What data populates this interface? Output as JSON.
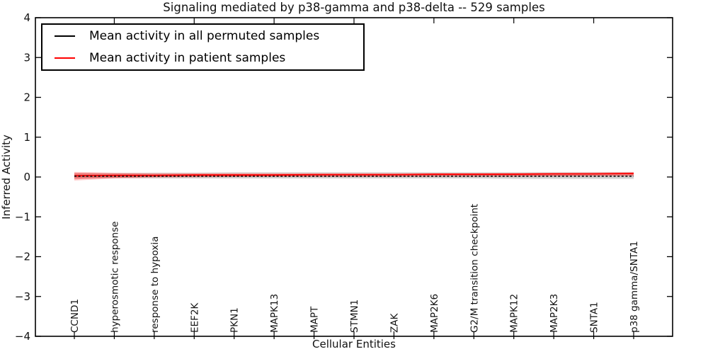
{
  "figure": {
    "background": "#ffffff",
    "frame_color": "#000000"
  },
  "legend": {
    "position": "upper-left",
    "entries": [
      {
        "label": "Mean activity in all permuted samples",
        "color": "#000000"
      },
      {
        "label": "Mean activity in patient samples",
        "color": "#ff0000"
      }
    ]
  },
  "chart_data": {
    "type": "line",
    "title": "Signaling mediated by p38-gamma and p38-delta -- 529 samples",
    "xlabel": "Cellular Entities",
    "ylabel": "Inferred Activity",
    "ylim": [
      -4,
      4
    ],
    "grid": false,
    "legend_position": "upper-left",
    "ytick_values": [
      4,
      3,
      2,
      1,
      0,
      -1,
      -2,
      -3,
      -4
    ],
    "ytick_labels": [
      "4",
      "3",
      "2",
      "1",
      "0",
      "−1",
      "−2",
      "−3",
      "−4"
    ],
    "categories": [
      "CCND1",
      "hyperosmotic response",
      "response to hypoxia",
      "EEF2K",
      "PKN1",
      "MAPK13",
      "MAPT",
      "STMN1",
      "ZAK",
      "MAP2K6",
      "G2/M transition checkpoint",
      "MAPK12",
      "MAP2K3",
      "SNTA1",
      "p38 gamma/SNTA1"
    ],
    "series": [
      {
        "name": "Mean activity in all permuted samples",
        "color": "#000000",
        "style": "dashed",
        "values": [
          0.02,
          0.02,
          0.02,
          0.02,
          0.02,
          0.02,
          0.02,
          0.02,
          0.02,
          0.02,
          0.02,
          0.02,
          0.02,
          0.02,
          0.02
        ]
      },
      {
        "name": "Mean activity in patient samples",
        "color": "#ff0000",
        "style": "solid",
        "values": [
          0.03,
          0.04,
          0.04,
          0.05,
          0.05,
          0.05,
          0.06,
          0.06,
          0.06,
          0.07,
          0.07,
          0.07,
          0.08,
          0.08,
          0.09
        ]
      }
    ],
    "bands": [
      {
        "name": "permuted-envelope-outer",
        "color": "#dcdcdc",
        "upper": [
          0.09,
          0.1,
          0.11,
          0.11,
          0.12,
          0.12,
          0.12,
          0.12,
          0.12,
          0.12,
          0.12,
          0.12,
          0.12,
          0.12,
          0.12
        ],
        "lower": [
          -0.03,
          -0.03,
          -0.04,
          -0.04,
          -0.04,
          -0.04,
          -0.04,
          -0.04,
          -0.04,
          -0.04,
          -0.04,
          -0.05,
          -0.05,
          -0.05,
          -0.05
        ]
      },
      {
        "name": "permuted-envelope-inner",
        "color": "#cccccc",
        "upper": [
          0.06,
          0.06,
          0.06,
          0.06,
          0.06,
          0.06,
          0.06,
          0.06,
          0.06,
          0.06,
          0.06,
          0.06,
          0.06,
          0.06,
          0.06
        ],
        "lower": [
          -0.02,
          -0.02,
          -0.02,
          -0.02,
          -0.02,
          -0.02,
          -0.02,
          -0.02,
          -0.02,
          -0.02,
          -0.02,
          -0.02,
          -0.02,
          -0.02,
          -0.02
        ]
      },
      {
        "name": "patient-envelope-outer",
        "color": "rgba(255,0,0,0.18)",
        "upper": [
          0.13,
          0.11,
          0.1,
          0.1,
          0.1,
          0.1,
          0.1,
          0.1,
          0.1,
          0.1,
          0.1,
          0.11,
          0.11,
          0.12,
          0.13
        ],
        "lower": [
          -0.09,
          -0.04,
          -0.02,
          -0.01,
          0.0,
          0.0,
          0.0,
          0.0,
          0.0,
          0.01,
          0.01,
          0.01,
          0.02,
          0.02,
          0.02
        ]
      },
      {
        "name": "patient-envelope-inner",
        "color": "rgba(255,0,0,0.30)",
        "upper": [
          0.11,
          0.09,
          0.08,
          0.08,
          0.08,
          0.08,
          0.08,
          0.08,
          0.08,
          0.08,
          0.08,
          0.09,
          0.09,
          0.09,
          0.1
        ],
        "lower": [
          -0.06,
          -0.02,
          0.0,
          0.01,
          0.01,
          0.02,
          0.02,
          0.02,
          0.02,
          0.03,
          0.03,
          0.03,
          0.03,
          0.04,
          0.04
        ]
      }
    ]
  }
}
